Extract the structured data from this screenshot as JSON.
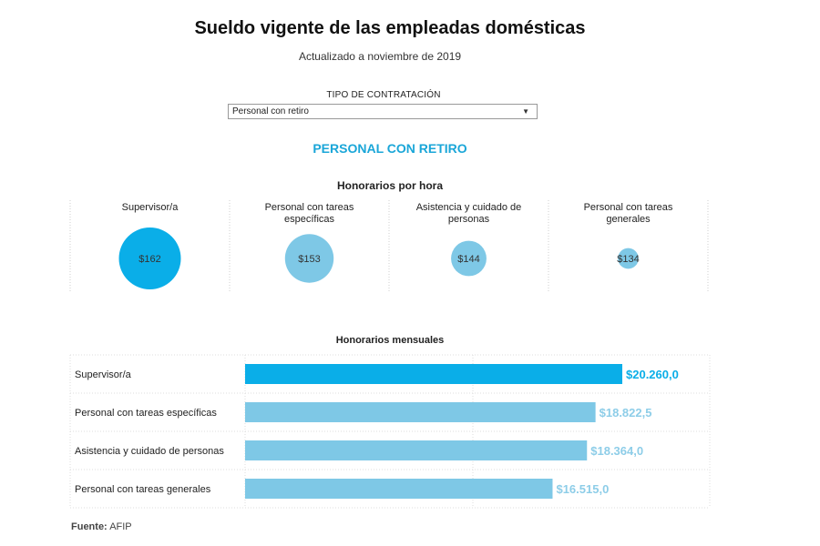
{
  "header": {
    "title": "Sueldo vigente de las empleadas domésticas",
    "subtitle": "Actualizado a noviembre de 2019"
  },
  "selector": {
    "label": "TIPO DE CONTRATACIÓN",
    "selected": "Personal con retiro"
  },
  "section_title": "PERSONAL CON RETIRO",
  "source": {
    "label": "Fuente:",
    "value": "AFIP"
  },
  "colors": {
    "highlight": "#0aaee8",
    "base": "#7ec8e6",
    "label_base": "#8dcde8"
  },
  "chart_data": [
    {
      "type": "scatter",
      "title": "Honorarios por hora",
      "categories": [
        "Supervisor/a",
        "Personal con tareas específicas",
        "Asistencia y cuidado de personas",
        "Personal con tareas generales"
      ],
      "values": [
        162,
        153,
        144,
        134
      ],
      "labels": [
        "$162",
        "$153",
        "$144",
        "$134"
      ],
      "highlight_index": 0
    },
    {
      "type": "bar",
      "title": "Honorarios mensuales",
      "categories": [
        "Supervisor/a",
        "Personal con tareas específicas",
        "Asistencia y cuidado de personas",
        "Personal con tareas generales"
      ],
      "values": [
        20260.0,
        18822.5,
        18364.0,
        16515.0
      ],
      "labels": [
        "$20.260,0",
        "$18.822,5",
        "$18.364,0",
        "$16.515,0"
      ],
      "highlight_index": 0
    }
  ]
}
